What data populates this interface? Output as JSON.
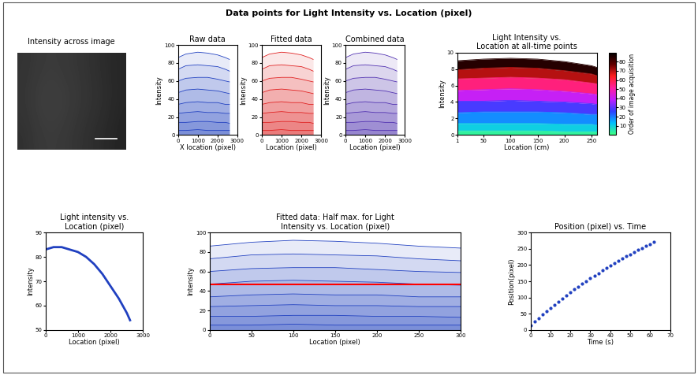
{
  "title": "Data points for Light Intensity vs. Location (pixel)",
  "chart_data": [
    {
      "type": "image",
      "title": "Intensity across image",
      "cells": [
        [
          0.2,
          0.22,
          0.23,
          0.22,
          0.21,
          0.19,
          0.17,
          0.15
        ],
        [
          0.21,
          0.24,
          0.25,
          0.24,
          0.22,
          0.2,
          0.18,
          0.15
        ],
        [
          0.19,
          0.22,
          0.23,
          0.22,
          0.2,
          0.18,
          0.16,
          0.14
        ]
      ],
      "clim": [
        0,
        1
      ]
    },
    {
      "type": "lines",
      "title": "Raw data",
      "xlabel": "X location (pixel)",
      "ylabel": "Intensity",
      "xlim": [
        0,
        3000
      ],
      "ylim": [
        0,
        100
      ],
      "xticks": [
        0,
        1000,
        2000,
        3000
      ],
      "yticks": [
        0,
        20,
        40,
        60,
        80,
        100
      ],
      "color": "#2040c0",
      "x": [
        0,
        400,
        1000,
        1500,
        2000,
        2400,
        2600
      ],
      "series": [
        {
          "values": [
            86,
            90,
            92,
            91,
            89,
            86,
            84
          ]
        },
        {
          "values": [
            73,
            77,
            78,
            77,
            76,
            73,
            71
          ]
        },
        {
          "values": [
            60,
            63,
            64,
            64,
            62,
            60,
            59
          ]
        },
        {
          "values": [
            47,
            50,
            51,
            50,
            49,
            47,
            46
          ]
        },
        {
          "values": [
            34,
            36,
            37,
            36,
            36,
            34,
            34
          ]
        },
        {
          "values": [
            24,
            25,
            26,
            25,
            25,
            24,
            24
          ]
        },
        {
          "values": [
            14,
            14,
            15,
            15,
            14,
            14,
            13
          ]
        },
        {
          "values": [
            5,
            5,
            6,
            5,
            5,
            5,
            5
          ]
        }
      ]
    },
    {
      "type": "lines",
      "title": "Fitted data",
      "xlabel": "Location (pixel)",
      "ylabel": "Intensity",
      "xlim": [
        0,
        3000
      ],
      "ylim": [
        0,
        100
      ],
      "xticks": [
        0,
        1000,
        2000,
        3000
      ],
      "yticks": [
        0,
        20,
        40,
        60,
        80,
        100
      ],
      "color": "#e02020",
      "x": [
        0,
        400,
        1000,
        1500,
        2000,
        2400,
        2600
      ],
      "series": [
        {
          "values": [
            86,
            90,
            92,
            91,
            89,
            86,
            84
          ]
        },
        {
          "values": [
            73,
            77,
            78,
            77,
            76,
            73,
            71
          ]
        },
        {
          "values": [
            60,
            63,
            64,
            64,
            62,
            60,
            59
          ]
        },
        {
          "values": [
            47,
            50,
            51,
            50,
            49,
            47,
            46
          ]
        },
        {
          "values": [
            34,
            36,
            37,
            36,
            36,
            34,
            34
          ]
        },
        {
          "values": [
            24,
            25,
            26,
            25,
            25,
            24,
            24
          ]
        },
        {
          "values": [
            14,
            14,
            15,
            15,
            14,
            14,
            13
          ]
        },
        {
          "values": [
            5,
            5,
            6,
            5,
            5,
            5,
            5
          ]
        }
      ]
    },
    {
      "type": "lines",
      "title": "Combined data",
      "xlabel": "Location (pixel)",
      "ylabel": "Intensity",
      "xlim": [
        0,
        3000
      ],
      "ylim": [
        0,
        100
      ],
      "xticks": [
        0,
        1000,
        2000,
        3000
      ],
      "yticks": [
        0,
        20,
        40,
        60,
        80,
        100
      ],
      "color": "#5030b0",
      "x": [
        0,
        400,
        1000,
        1500,
        2000,
        2400,
        2600
      ],
      "series": [
        {
          "values": [
            86,
            90,
            92,
            91,
            89,
            86,
            84
          ]
        },
        {
          "values": [
            73,
            77,
            78,
            77,
            76,
            73,
            71
          ]
        },
        {
          "values": [
            60,
            63,
            64,
            64,
            62,
            60,
            59
          ]
        },
        {
          "values": [
            47,
            50,
            51,
            50,
            49,
            47,
            46
          ]
        },
        {
          "values": [
            34,
            36,
            37,
            36,
            36,
            34,
            34
          ]
        },
        {
          "values": [
            24,
            25,
            26,
            25,
            25,
            24,
            24
          ]
        },
        {
          "values": [
            14,
            14,
            15,
            15,
            14,
            14,
            13
          ]
        },
        {
          "values": [
            5,
            5,
            6,
            5,
            5,
            5,
            5
          ]
        }
      ]
    },
    {
      "type": "gradient_lines",
      "title": "Light Intensity vs.\nLocation at all-time points",
      "xlabel": "Location (cm)",
      "ylabel": "Intensity",
      "xlim": [
        1,
        260
      ],
      "ylim": [
        0,
        10
      ],
      "xticks": [
        1,
        50,
        100,
        150,
        200,
        250
      ],
      "yticks": [
        0,
        2,
        4,
        6,
        8,
        10
      ],
      "x": [
        1,
        50,
        100,
        150,
        200,
        250,
        260
      ],
      "series": [
        {
          "order": 3,
          "values": [
            0.5,
            0.5,
            0.5,
            0.5,
            0.4,
            0.4,
            0.4
          ]
        },
        {
          "order": 10,
          "values": [
            1.4,
            1.4,
            1.4,
            1.4,
            1.3,
            1.3,
            1.2
          ]
        },
        {
          "order": 18,
          "values": [
            2.7,
            2.8,
            2.8,
            2.8,
            2.7,
            2.5,
            2.5
          ]
        },
        {
          "order": 28,
          "values": [
            4.1,
            4.1,
            4.2,
            4.1,
            4.0,
            3.8,
            3.7
          ]
        },
        {
          "order": 40,
          "values": [
            5.4,
            5.5,
            5.6,
            5.5,
            5.3,
            5.0,
            4.9
          ]
        },
        {
          "order": 55,
          "values": [
            6.8,
            6.9,
            7.0,
            6.9,
            6.7,
            6.3,
            6.2
          ]
        },
        {
          "order": 70,
          "values": [
            7.9,
            8.1,
            8.2,
            8.1,
            7.8,
            7.4,
            7.2
          ]
        },
        {
          "order": 85,
          "values": [
            9.0,
            9.2,
            9.3,
            9.2,
            8.9,
            8.4,
            8.2
          ]
        }
      ],
      "colorbar": {
        "label": "Order of image acquisition",
        "lim": [
          0,
          90
        ],
        "ticks": [
          10,
          20,
          30,
          40,
          50,
          60,
          70,
          80
        ],
        "colors": [
          "#40ff80",
          "#00c0ff",
          "#3040ff",
          "#c020ff",
          "#ff20a0",
          "#ff2020",
          "#600000",
          "#000000"
        ]
      }
    },
    {
      "type": "line",
      "title": "Light intensity vs.\nLocation (pixel)",
      "xlabel": "Location (pixel)",
      "ylabel": "Intensity",
      "xlim": [
        0,
        3000
      ],
      "ylim": [
        50,
        90
      ],
      "xticks": [
        0,
        1000,
        2000,
        3000
      ],
      "yticks": [
        50,
        60,
        70,
        80,
        90
      ],
      "color": "#2040c0",
      "x": [
        0,
        250,
        500,
        750,
        1000,
        1250,
        1500,
        1750,
        2000,
        2250,
        2500,
        2600
      ],
      "series": [
        {
          "values": [
            83,
            84,
            84,
            83,
            82,
            80,
            77,
            73,
            68,
            63,
            57,
            54
          ]
        }
      ]
    },
    {
      "type": "lines",
      "title": "Fitted data: Half max. for Light\nIntensity vs. Location (pixel)",
      "xlabel": "Location (pixel)",
      "ylabel": "Intensity",
      "xlim": [
        0,
        300
      ],
      "ylim": [
        0,
        100
      ],
      "xticks": [
        0,
        50,
        100,
        150,
        200,
        250,
        300
      ],
      "yticks": [
        0,
        20,
        40,
        60,
        80,
        100
      ],
      "color": "#2040c0",
      "x": [
        0,
        50,
        100,
        150,
        200,
        250,
        300
      ],
      "series": [
        {
          "values": [
            86,
            90,
            92,
            91,
            89,
            86,
            84
          ]
        },
        {
          "values": [
            73,
            77,
            78,
            77,
            76,
            73,
            71
          ]
        },
        {
          "values": [
            60,
            63,
            64,
            64,
            62,
            60,
            59
          ]
        },
        {
          "values": [
            47,
            50,
            51,
            50,
            49,
            47,
            46
          ]
        },
        {
          "values": [
            34,
            36,
            37,
            36,
            36,
            34,
            34
          ]
        },
        {
          "values": [
            24,
            25,
            26,
            25,
            25,
            24,
            24
          ]
        },
        {
          "values": [
            14,
            14,
            15,
            15,
            14,
            14,
            13
          ]
        },
        {
          "values": [
            5,
            5,
            6,
            5,
            5,
            5,
            5
          ]
        }
      ],
      "half_max": {
        "value": 47,
        "color": "#ff0000"
      }
    },
    {
      "type": "scatter",
      "title": "Position (pixel) vs. Time",
      "xlabel": "Time (s)",
      "ylabel": "Position(pixel)",
      "xlim": [
        0,
        70
      ],
      "ylim": [
        0,
        300
      ],
      "xticks": [
        0,
        10,
        20,
        30,
        40,
        50,
        60,
        70
      ],
      "yticks": [
        0,
        50,
        100,
        150,
        200,
        250,
        300
      ],
      "color": "#2040c0",
      "marker": "o",
      "x": [
        0,
        2,
        4,
        6,
        8,
        10,
        12,
        14,
        16,
        18,
        20,
        22,
        24,
        26,
        28,
        30,
        32,
        34,
        36,
        38,
        40,
        42,
        44,
        46,
        48,
        50,
        52,
        54,
        56,
        58,
        60,
        62
      ],
      "series": [
        {
          "values": [
            15,
            26,
            37,
            47,
            58,
            68,
            78,
            88,
            97,
            106,
            116,
            125,
            133,
            142,
            151,
            159,
            167,
            175,
            183,
            191,
            198,
            206,
            213,
            220,
            227,
            233,
            240,
            246,
            253,
            259,
            264,
            270
          ]
        }
      ]
    }
  ]
}
